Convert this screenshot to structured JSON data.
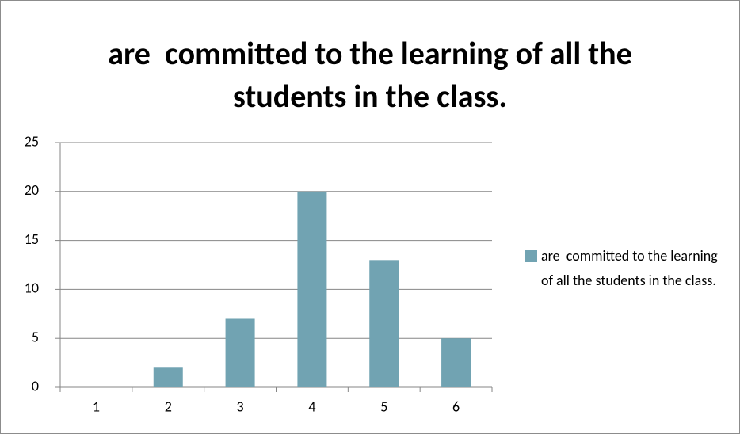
{
  "chart_data": {
    "type": "bar",
    "title": "are  committed to the learning of all the students in the class.",
    "categories": [
      "1",
      "2",
      "3",
      "4",
      "5",
      "6"
    ],
    "series": [
      {
        "name": "are  committed to the learning of all the students in the class.",
        "color": "#71a3b2",
        "values": [
          0,
          2,
          7,
          20,
          13,
          5
        ]
      }
    ],
    "ylim": [
      0,
      25
    ],
    "yticks": [
      0,
      5,
      10,
      15,
      20,
      25
    ],
    "grid": true,
    "legend": "right"
  }
}
